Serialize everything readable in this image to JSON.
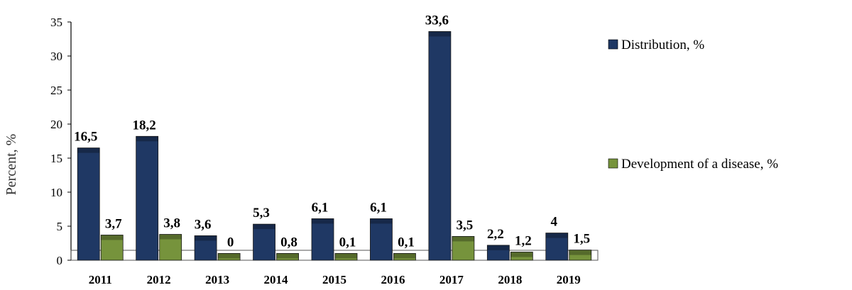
{
  "chart_data": {
    "type": "bar",
    "categories": [
      "2011",
      "2012",
      "2013",
      "2014",
      "2015",
      "2016",
      "2017",
      "2018",
      "2019"
    ],
    "series": [
      {
        "name": "Distribution, %",
        "values": [
          16.5,
          18.2,
          3.6,
          5.3,
          6.1,
          6.1,
          33.6,
          2.2,
          4
        ],
        "labels": [
          "16,5",
          "18,2",
          "3,6",
          "5,3",
          "6,1",
          "6,1",
          "33,6",
          "2,2",
          "4"
        ],
        "color": "#1f3864"
      },
      {
        "name": "Development of a disease, %",
        "values": [
          3.7,
          3.8,
          0,
          0.8,
          0.1,
          0.1,
          3.5,
          1.2,
          1.5
        ],
        "labels": [
          "3,7",
          "3,8",
          "0",
          "0,8",
          "0,1",
          "0,1",
          "3,5",
          "1,2",
          "1,5"
        ],
        "color": "#76933c"
      }
    ],
    "title": "",
    "xlabel": "",
    "ylabel": "Percent, %",
    "ylim": [
      0,
      35
    ],
    "yticks": [
      0,
      5,
      10,
      15,
      20,
      25,
      30,
      35
    ],
    "grid": false,
    "legend": "right"
  }
}
